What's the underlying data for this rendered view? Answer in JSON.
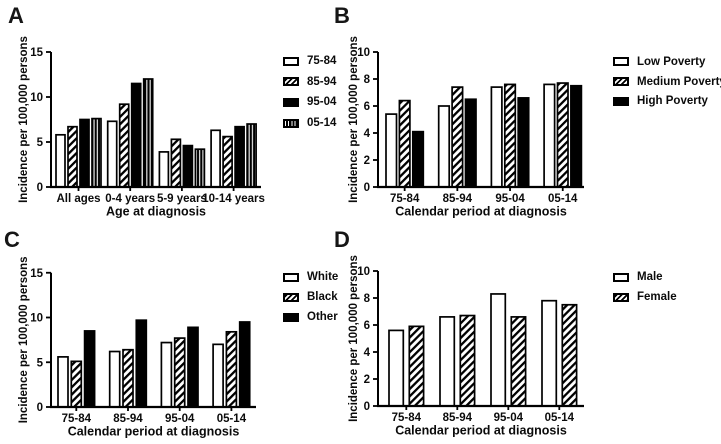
{
  "figure": {
    "background": "#ffffff",
    "ink_color": "#000000"
  },
  "chart_data": [
    {
      "panel": "A",
      "type": "bar",
      "title": "",
      "xlabel": "Age at diagnosis",
      "ylabel": "Incidence per 100,000 persons",
      "ylim": [
        0,
        15
      ],
      "yticks": [
        0,
        5,
        10,
        15
      ],
      "grid": false,
      "legend_position": "right",
      "categories": [
        "All ages",
        "0-4 years",
        "5-9 years",
        "10-14 years"
      ],
      "series": [
        {
          "name": "75-84",
          "pattern": "open",
          "values": [
            5.8,
            7.3,
            3.9,
            6.3
          ]
        },
        {
          "name": "85-94",
          "pattern": "diagonal",
          "values": [
            6.7,
            9.2,
            5.3,
            5.6
          ]
        },
        {
          "name": "95-04",
          "pattern": "solid",
          "values": [
            7.5,
            11.5,
            4.6,
            6.7
          ]
        },
        {
          "name": "05-14",
          "pattern": "vertical",
          "values": [
            7.6,
            12.0,
            4.2,
            7.0
          ]
        }
      ]
    },
    {
      "panel": "B",
      "type": "bar",
      "title": "",
      "xlabel": "Calendar period at diagnosis",
      "ylabel": "Incidence per 100,000 persons",
      "ylim": [
        0,
        10
      ],
      "yticks": [
        0,
        2,
        4,
        6,
        8,
        10
      ],
      "grid": false,
      "legend_position": "right",
      "categories": [
        "75-84",
        "85-94",
        "95-04",
        "05-14"
      ],
      "series": [
        {
          "name": "Low Poverty",
          "pattern": "open",
          "values": [
            5.4,
            6.0,
            7.4,
            7.6
          ]
        },
        {
          "name": "Medium Poverty",
          "pattern": "diagonal",
          "values": [
            6.4,
            7.4,
            7.6,
            7.7
          ]
        },
        {
          "name": "High Poverty",
          "pattern": "solid",
          "values": [
            4.1,
            6.5,
            6.6,
            7.5
          ]
        }
      ]
    },
    {
      "panel": "C",
      "type": "bar",
      "title": "",
      "xlabel": "Calendar period at diagnosis",
      "ylabel": "Incidence per 100,000 persons",
      "ylim": [
        0,
        15
      ],
      "yticks": [
        0,
        5,
        10,
        15
      ],
      "grid": false,
      "legend_position": "right",
      "categories": [
        "75-84",
        "85-94",
        "95-04",
        "05-14"
      ],
      "series": [
        {
          "name": "White",
          "pattern": "open",
          "values": [
            5.6,
            6.2,
            7.2,
            7.0
          ]
        },
        {
          "name": "Black",
          "pattern": "diagonal",
          "values": [
            5.1,
            6.4,
            7.7,
            8.4
          ]
        },
        {
          "name": "Other",
          "pattern": "solid",
          "values": [
            8.5,
            9.7,
            8.9,
            9.5
          ]
        }
      ]
    },
    {
      "panel": "D",
      "type": "bar",
      "title": "",
      "xlabel": "Calendar period at diagnosis",
      "ylabel": "Incidence per 100,000 persons",
      "ylim": [
        0,
        10
      ],
      "yticks": [
        0,
        2,
        4,
        6,
        8,
        10
      ],
      "grid": false,
      "legend_position": "right",
      "categories": [
        "75-84",
        "85-94",
        "95-04",
        "05-14"
      ],
      "series": [
        {
          "name": "Male",
          "pattern": "open",
          "values": [
            5.6,
            6.6,
            8.3,
            7.8
          ]
        },
        {
          "name": "Female",
          "pattern": "diagonal",
          "values": [
            5.9,
            6.7,
            6.6,
            7.5
          ]
        }
      ]
    }
  ]
}
